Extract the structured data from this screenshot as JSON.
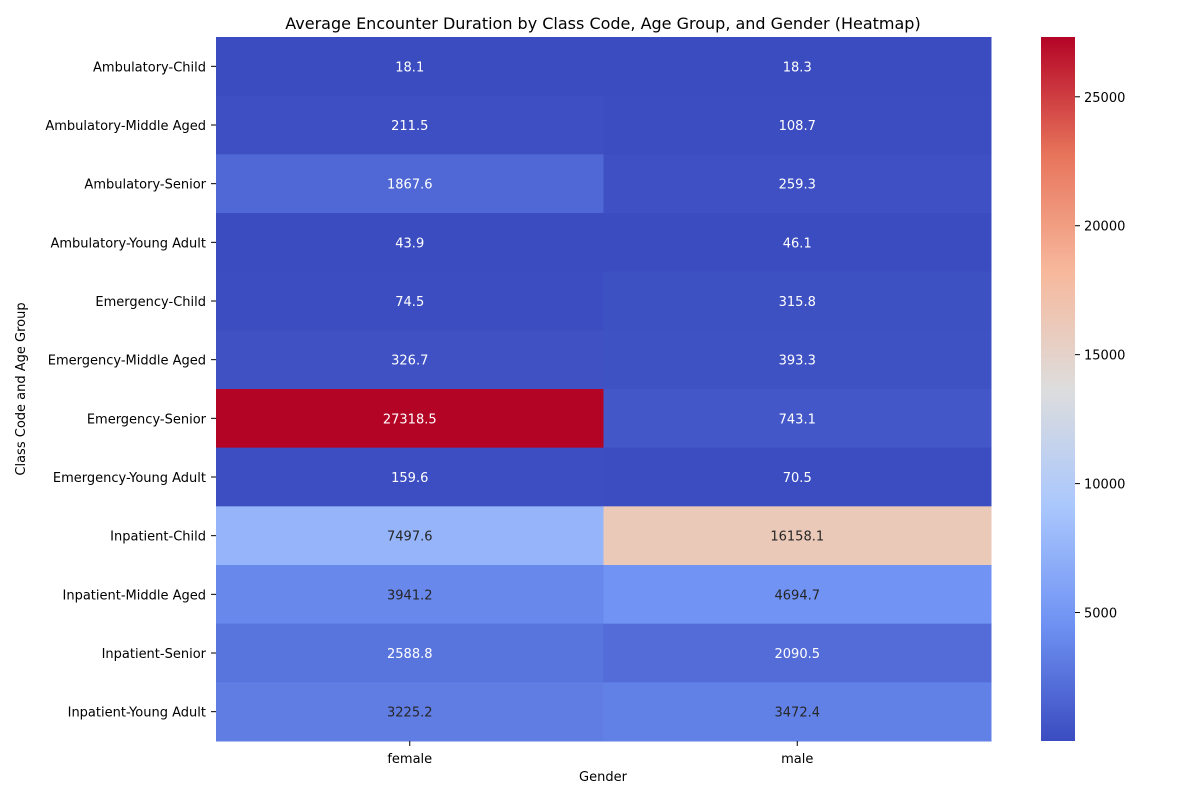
{
  "chart_data": {
    "type": "heatmap",
    "title": "Average Encounter Duration by Class Code, Age Group, and Gender (Heatmap)",
    "xlabel": "Gender",
    "ylabel": "Class Code and Age Group",
    "x_categories": [
      "female",
      "male"
    ],
    "y_categories": [
      "Ambulatory-Child",
      "Ambulatory-Middle Aged",
      "Ambulatory-Senior",
      "Ambulatory-Young Adult",
      "Emergency-Child",
      "Emergency-Middle Aged",
      "Emergency-Senior",
      "Emergency-Young Adult",
      "Inpatient-Child",
      "Inpatient-Middle Aged",
      "Inpatient-Senior",
      "Inpatient-Young Adult"
    ],
    "values": [
      [
        18.1,
        18.3
      ],
      [
        211.5,
        108.7
      ],
      [
        1867.6,
        259.3
      ],
      [
        43.9,
        46.1
      ],
      [
        74.5,
        315.8
      ],
      [
        326.7,
        393.3
      ],
      [
        27318.5,
        743.1
      ],
      [
        159.6,
        70.5
      ],
      [
        7497.6,
        16158.1
      ],
      [
        3941.2,
        4694.7
      ],
      [
        2588.8,
        2090.5
      ],
      [
        3225.2,
        3472.4
      ]
    ],
    "value_labels": [
      [
        "18.1",
        "18.3"
      ],
      [
        "211.5",
        "108.7"
      ],
      [
        "1867.6",
        "259.3"
      ],
      [
        "43.9",
        "46.1"
      ],
      [
        "74.5",
        "315.8"
      ],
      [
        "326.7",
        "393.3"
      ],
      [
        "27318.5",
        "743.1"
      ],
      [
        "159.6",
        "70.5"
      ],
      [
        "7497.6",
        "16158.1"
      ],
      [
        "3941.2",
        "4694.7"
      ],
      [
        "2588.8",
        "2090.5"
      ],
      [
        "3225.2",
        "3472.4"
      ]
    ],
    "colormap": "coolwarm",
    "colormap_stops": [
      "#3b4cc0",
      "#6f92f3",
      "#aac7fd",
      "#dddddd",
      "#f7b89c",
      "#e7745b",
      "#b40426"
    ],
    "colorbar": {
      "min": 18.1,
      "max": 27318.5,
      "ticks": [
        5000,
        10000,
        15000,
        20000,
        25000
      ],
      "tick_labels": [
        "5000",
        "10000",
        "15000",
        "20000",
        "25000"
      ]
    },
    "annotation_colors": {
      "light_text": "#ffffff",
      "dark_text": "#262626"
    }
  }
}
